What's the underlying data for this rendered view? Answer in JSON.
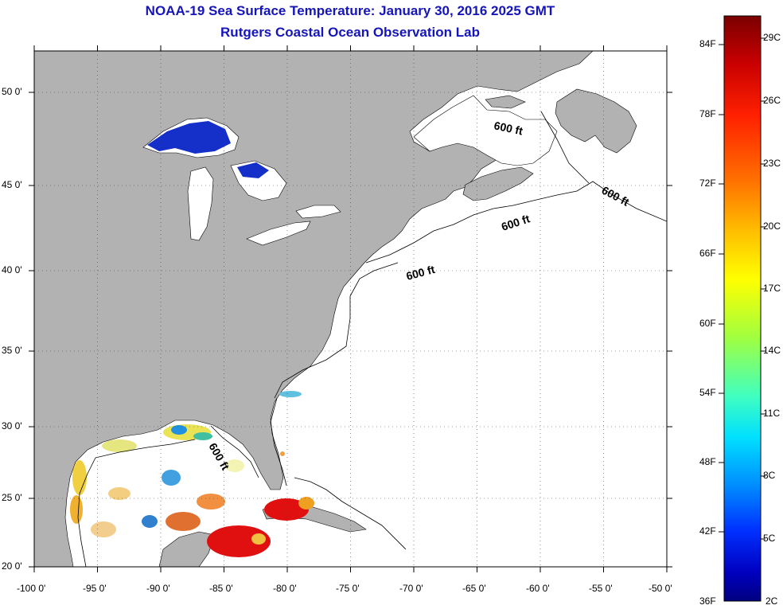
{
  "title_line1": "NOAA-19 Sea Surface Temperature:  January 30, 2016 2025 GMT",
  "title_line2": "Rutgers Coastal Ocean Observation Lab",
  "lat_ticks": [
    "50 0'",
    "45 0'",
    "40 0'",
    "35 0'",
    "30 0'",
    "25 0'",
    "20 0'"
  ],
  "lon_ticks": [
    "-100 0'",
    "-95 0'",
    "-90 0'",
    "-85 0'",
    "-80 0'",
    "-75 0'",
    "-70 0'",
    "-65 0'",
    "-60 0'",
    "-55 0'",
    "-50 0'"
  ],
  "contour_labels": [
    "600 ft",
    "600 ft",
    "600 ft",
    "600 ft",
    "600 ft"
  ],
  "colorbar": {
    "fahrenheit": [
      "84F",
      "78F",
      "72F",
      "66F",
      "60F",
      "54F",
      "48F",
      "42F",
      "36F"
    ],
    "celsius": [
      "29C",
      "26C",
      "23C",
      "20C",
      "17C",
      "14C",
      "11C",
      "8C",
      "5C",
      "2C"
    ],
    "colors": [
      "#7a0000",
      "#c80000",
      "#ff2000",
      "#ff7000",
      "#ffc000",
      "#ffff00",
      "#a0ff40",
      "#40ffc0",
      "#00e0ff",
      "#0090ff",
      "#0030ff",
      "#0000c0",
      "#000080"
    ]
  },
  "colors": {
    "land": "#b2b2b2",
    "ocean": "#ffffff",
    "title": "#1515b8",
    "lake_cold": "#1530c8"
  }
}
